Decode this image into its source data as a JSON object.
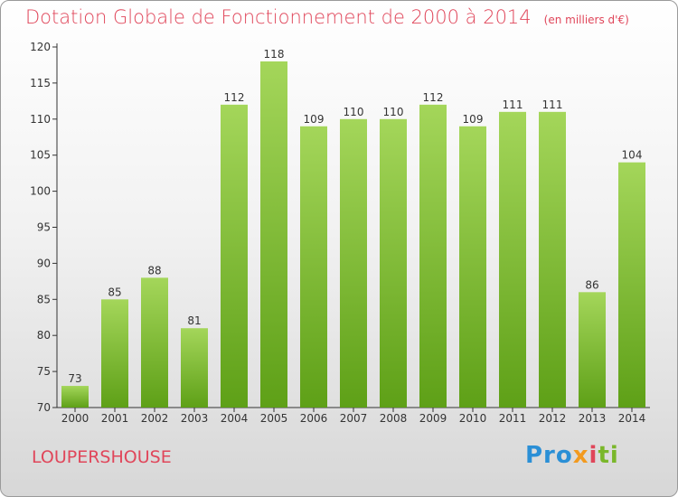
{
  "title": "Dotation Globale de Fonctionnement de 2000 à 2014",
  "unit": "(en milliers d'€)",
  "commune": "LOUPERSHOUSE",
  "brand": {
    "p1": "Pro",
    "p2": "x",
    "p3": "i",
    "p4": "ti"
  },
  "colors": {
    "title": "#e0465a",
    "bar_top": "#a4d65a",
    "bar_bottom": "#5ea017",
    "axis": "#333333"
  },
  "chart_data": {
    "type": "bar",
    "categories": [
      "2000",
      "2001",
      "2002",
      "2003",
      "2004",
      "2005",
      "2006",
      "2007",
      "2008",
      "2009",
      "2010",
      "2011",
      "2012",
      "2013",
      "2014"
    ],
    "values": [
      73,
      85,
      88,
      81,
      112,
      118,
      109,
      110,
      110,
      112,
      109,
      111,
      111,
      86,
      104
    ],
    "ylim": [
      70,
      120
    ],
    "yticks": [
      70,
      75,
      80,
      85,
      90,
      95,
      100,
      105,
      110,
      115,
      120
    ],
    "grid": false,
    "legend": "none"
  }
}
